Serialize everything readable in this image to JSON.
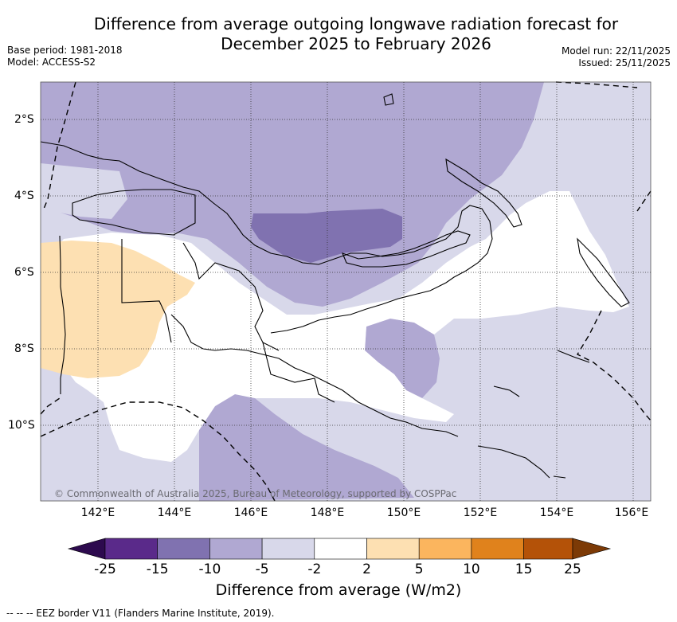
{
  "header": {
    "title_line1": "Difference from average outgoing longwave radiation forecast for",
    "title_line2": "December 2025 to February 2026",
    "base_period": "Base period: 1981-2018",
    "model": "Model: ACCESS-S2",
    "model_run": "Model run: 22/11/2025",
    "issued": "Issued: 25/11/2025"
  },
  "map": {
    "lon_labels": [
      "142°E",
      "144°E",
      "146°E",
      "148°E",
      "150°E",
      "152°E",
      "154°E",
      "156°E"
    ],
    "lat_labels": [
      "2°S",
      "4°S",
      "6°S",
      "8°S",
      "10°S"
    ],
    "credit": "© Commonwealth of Australia 2025, Bureau of Meteorology, supported by COSPPac"
  },
  "colorbar": {
    "ticks": [
      "-25",
      "-15",
      "-10",
      "-5",
      "-2",
      "2",
      "5",
      "10",
      "15",
      "25"
    ],
    "colors": [
      "#2d0a4e",
      "#5a2a8a",
      "#8072b0",
      "#b0a8d2",
      "#d8d8ea",
      "#ffffff",
      "#fde0b2",
      "#fbb55e",
      "#e0821c",
      "#b45208",
      "#7c3a06"
    ],
    "label": "Difference from average (W/m2)"
  },
  "footnote": "--  --  -- EEZ border V11 (Flanders Marine Institute, 2019)."
}
